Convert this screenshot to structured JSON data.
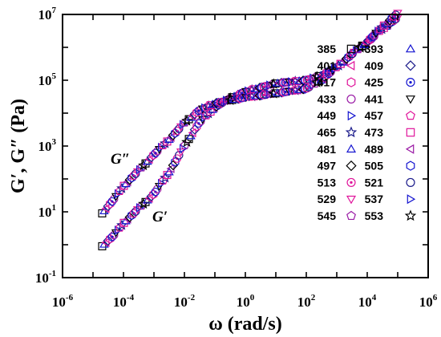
{
  "chart_data": {
    "type": "scatter",
    "title": "",
    "xlabel": "ω (rad/s)",
    "ylabel": "G′, G″ (Pa)",
    "x_scale": "log",
    "y_scale": "log",
    "xlim": [
      1e-06,
      1000000.0
    ],
    "ylim": [
      0.1,
      10000000.0
    ],
    "x_ticks": [
      {
        "base": "10",
        "exp": "-6"
      },
      {
        "base": "10",
        "exp": "-4"
      },
      {
        "base": "10",
        "exp": "-2"
      },
      {
        "base": "10",
        "exp": "0"
      },
      {
        "base": "10",
        "exp": "2"
      },
      {
        "base": "10",
        "exp": "4"
      },
      {
        "base": "10",
        "exp": "6"
      }
    ],
    "y_ticks": [
      {
        "base": "10",
        "exp": "-1"
      },
      {
        "base": "10",
        "exp": "1"
      },
      {
        "base": "10",
        "exp": "3"
      },
      {
        "base": "10",
        "exp": "5"
      },
      {
        "base": "10",
        "exp": "7"
      }
    ],
    "grid": false,
    "legend_position": "right (inside plot, two columns)",
    "annotations": [
      "G″",
      "G′"
    ],
    "series": [
      {
        "name": "385",
        "marker": "square",
        "color": "#000000"
      },
      {
        "name": "393",
        "marker": "triangle-up",
        "color": "#1515d0"
      },
      {
        "name": "401",
        "marker": "triangle-left",
        "color": "#e0149b"
      },
      {
        "name": "409",
        "marker": "diamond",
        "color": "#1a1a8a"
      },
      {
        "name": "417",
        "marker": "hexagon",
        "color": "#e0149b"
      },
      {
        "name": "425",
        "marker": "circle-dot",
        "color": "#1515d0"
      },
      {
        "name": "433",
        "marker": "circle",
        "color": "#9a1aa5"
      },
      {
        "name": "441",
        "marker": "triangle-down",
        "color": "#000000"
      },
      {
        "name": "449",
        "marker": "triangle-right",
        "color": "#1515d0"
      },
      {
        "name": "457",
        "marker": "pentagon",
        "color": "#e0149b"
      },
      {
        "name": "465",
        "marker": "star",
        "color": "#1a1a8a"
      },
      {
        "name": "473",
        "marker": "square",
        "color": "#e0149b"
      },
      {
        "name": "481",
        "marker": "triangle-up",
        "color": "#1515d0"
      },
      {
        "name": "489",
        "marker": "triangle-left",
        "color": "#9a1aa5"
      },
      {
        "name": "497",
        "marker": "diamond",
        "color": "#000000"
      },
      {
        "name": "505",
        "marker": "hexagon",
        "color": "#1515d0"
      },
      {
        "name": "513",
        "marker": "circle-dot",
        "color": "#e0149b"
      },
      {
        "name": "521",
        "marker": "circle",
        "color": "#1a1a8a"
      },
      {
        "name": "529",
        "marker": "triangle-down",
        "color": "#e0149b"
      },
      {
        "name": "537",
        "marker": "triangle-right",
        "color": "#1515d0"
      },
      {
        "name": "545",
        "marker": "pentagon",
        "color": "#9a1aa5"
      },
      {
        "name": "553",
        "marker": "star",
        "color": "#000000"
      }
    ],
    "master_curves": {
      "G_double_prime": [
        [
          2e-05,
          9
        ],
        [
          5e-05,
          25
        ],
        [
          0.0001,
          60
        ],
        [
          0.0003,
          170
        ],
        [
          0.001,
          550
        ],
        [
          0.003,
          1500
        ],
        [
          0.01,
          5000
        ],
        [
          0.03,
          12000
        ],
        [
          0.1,
          20000
        ],
        [
          1,
          30000
        ],
        [
          10,
          40000
        ],
        [
          100,
          55000
        ],
        [
          300,
          100000
        ],
        [
          1000,
          250000
        ],
        [
          3000,
          600000
        ],
        [
          10000,
          1500000
        ],
        [
          30000,
          4000000
        ],
        [
          100000,
          11000000
        ]
      ],
      "G_prime": [
        [
          2e-05,
          0.9
        ],
        [
          5e-05,
          2
        ],
        [
          0.0001,
          4.5
        ],
        [
          0.0003,
          12
        ],
        [
          0.001,
          35
        ],
        [
          0.003,
          150
        ],
        [
          0.01,
          1000
        ],
        [
          0.03,
          5000
        ],
        [
          0.1,
          15000
        ],
        [
          0.3,
          28000
        ],
        [
          1,
          45000
        ],
        [
          10,
          80000
        ],
        [
          100,
          100000
        ],
        [
          300,
          140000
        ],
        [
          1000,
          250000
        ],
        [
          3000,
          600000
        ],
        [
          10000,
          1400000
        ],
        [
          30000,
          3500000
        ],
        [
          100000,
          8000000
        ]
      ]
    }
  }
}
